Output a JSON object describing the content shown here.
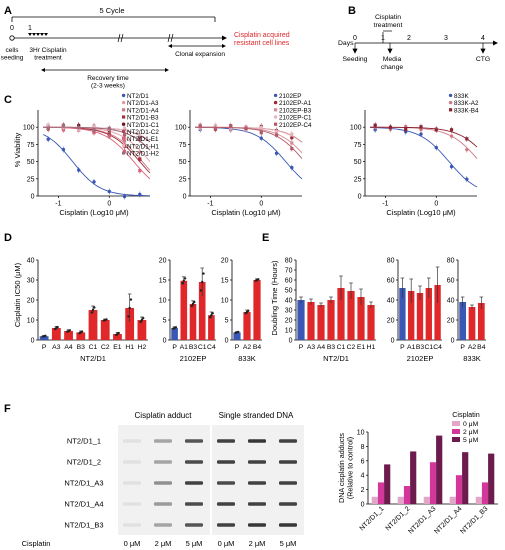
{
  "panels": {
    "A": {
      "letter": "A",
      "cycle_label": "5 Cycle",
      "day0": "0",
      "day1": "1",
      "seeding": "cells\nseeding",
      "treatment": "3Hr Cisplatin\ntreatment",
      "recovery": "Recovery time\n(2-3 weeks)",
      "clonal": "Clonal expansion",
      "resistant": "Cisplatin acquired\nresistant cell lines",
      "resistant_color": "#e0272a"
    },
    "B": {
      "letter": "B",
      "days_label": "Days",
      "ticks": [
        "0",
        "1",
        "2",
        "3",
        "4"
      ],
      "cisplatin": "Cisplatin\ntreatment",
      "media": "Media\nchange",
      "seeding": "Seeding",
      "ctg": "CTG"
    },
    "C": {
      "letter": "C",
      "ylabel": "% Viability",
      "xlabel": "Cisplatin (Log10 μM)"
    },
    "D": {
      "letter": "D",
      "ylabel": "Cisplatin IC50 (μM)"
    },
    "E": {
      "letter": "E",
      "ylabel": "Doubling Time (Hours)"
    },
    "F": {
      "letter": "F",
      "adduct_title": "Cisplatin adduct",
      "ssdna_title": "Single stranded DNA",
      "rows": [
        "NT2/D1_1",
        "NT2/D1_2",
        "NT2/D1_A3",
        "NT2/D1_A4",
        "NT2/D1_B3"
      ],
      "dose_label": "Cisplatin",
      "doses": [
        "0 μM",
        "2 μM",
        "5 μM"
      ],
      "blot_adduct": [
        [
          0.05,
          0.35,
          0.75
        ],
        [
          0.05,
          0.35,
          0.8
        ],
        [
          0.05,
          0.45,
          0.85
        ],
        [
          0.05,
          0.4,
          0.8
        ],
        [
          0.05,
          0.35,
          0.75
        ]
      ],
      "blot_ssdna": [
        [
          0.85,
          0.9,
          0.85
        ],
        [
          0.85,
          0.85,
          0.85
        ],
        [
          0.8,
          0.85,
          0.85
        ],
        [
          0.85,
          0.85,
          0.85
        ],
        [
          0.85,
          0.9,
          0.9
        ]
      ]
    }
  },
  "chart_data": [
    {
      "type": "line",
      "panel": "C-left",
      "xlabel": "Cisplatin (Log10 μM)",
      "ylabel": "% Viability",
      "xlim": [
        -1.4,
        0.8
      ],
      "ylim": [
        0,
        125
      ],
      "xticks": [
        -1,
        0
      ],
      "yticks": [
        0,
        25,
        50,
        75,
        100
      ],
      "legend_position": "top-right",
      "series": [
        {
          "name": "NT2/D1",
          "color": "#3a57b5",
          "marker": "circle",
          "ic50": -0.72,
          "hill": 1.6
        },
        {
          "name": "NT2/D1-A3",
          "color": "#e49aa6",
          "marker": "circle",
          "ic50": 0.8,
          "hill": 1.5
        },
        {
          "name": "NT2/D1-A4",
          "color": "#c97d88",
          "marker": "square",
          "ic50": 0.65,
          "hill": 1.5
        },
        {
          "name": "NT2/D1-B3",
          "color": "#a3303c",
          "marker": "square",
          "ic50": 0.6,
          "hill": 1.5
        },
        {
          "name": "NT2/D1-C1",
          "color": "#6b1520",
          "marker": "circle",
          "ic50": 1.18,
          "hill": 1.5
        },
        {
          "name": "NT2/D1-C2",
          "color": "#b4434f",
          "marker": "circle",
          "ic50": 1.0,
          "hill": 1.5
        },
        {
          "name": "NT2/D1-E1",
          "color": "#d8627a",
          "marker": "square",
          "ic50": 0.48,
          "hill": 1.5
        },
        {
          "name": "NT2/D1-H1",
          "color": "#e6b9c3",
          "marker": "circle",
          "ic50": 1.2,
          "hill": 1.5
        },
        {
          "name": "NT2/D1-H2",
          "color": "#a06a78",
          "marker": "square",
          "ic50": 1.0,
          "hill": 1.5
        }
      ]
    },
    {
      "type": "line",
      "panel": "C-middle",
      "xlim": [
        -1.4,
        0.8
      ],
      "ylim": [
        0,
        125
      ],
      "xticks": [
        -1,
        0
      ],
      "yticks": [
        0,
        25,
        50,
        75,
        100
      ],
      "legend_position": "top-right",
      "series": [
        {
          "name": "2102EP",
          "color": "#3a57b5",
          "marker": "circle",
          "ic50": 0.48,
          "hill": 1.5
        },
        {
          "name": "2102EP-A1",
          "color": "#9b2532",
          "marker": "circle",
          "ic50": 1.17,
          "hill": 1.5
        },
        {
          "name": "2102EP-B3",
          "color": "#d58b96",
          "marker": "square",
          "ic50": 0.95,
          "hill": 1.5
        },
        {
          "name": "2102EP-C1",
          "color": "#e8b4bc",
          "marker": "circle",
          "ic50": 1.16,
          "hill": 1.5
        },
        {
          "name": "2102EP-C4",
          "color": "#b25a68",
          "marker": "square",
          "ic50": 0.85,
          "hill": 1.5
        }
      ]
    },
    {
      "type": "line",
      "panel": "C-right",
      "xlim": [
        -1.4,
        0.8
      ],
      "ylim": [
        0,
        125
      ],
      "xticks": [
        -1,
        0
      ],
      "yticks": [
        0,
        25,
        50,
        75,
        100
      ],
      "legend_position": "top-right",
      "series": [
        {
          "name": "833K",
          "color": "#3a57b5",
          "marker": "circle",
          "ic50": 0.25,
          "hill": 1.5
        },
        {
          "name": "833K-A2",
          "color": "#d07a86",
          "marker": "circle",
          "ic50": 0.85,
          "hill": 1.5
        },
        {
          "name": "833K-B4",
          "color": "#8b2330",
          "marker": "square",
          "ic50": 1.06,
          "hill": 1.5
        }
      ]
    },
    {
      "type": "bar",
      "panel": "D",
      "ylabel": "Cisplatin IC50 (μM)",
      "groups": [
        {
          "name": "NT2/D1",
          "ylim": [
            0,
            40
          ],
          "yticks": [
            0,
            10,
            20,
            30,
            40
          ],
          "categories": [
            "P",
            "A3",
            "A4",
            "B3",
            "C1",
            "C2",
            "E1",
            "H1",
            "H2"
          ],
          "values": [
            1.9,
            6.0,
            4.5,
            3.8,
            15.0,
            10.0,
            3.0,
            16.0,
            10.0
          ],
          "errors": [
            0.3,
            0.8,
            0.6,
            0.7,
            2.0,
            0.5,
            0.8,
            7.0,
            1.5
          ]
        },
        {
          "name": "2102EP",
          "ylim": [
            0,
            20
          ],
          "yticks": [
            0,
            5,
            10,
            15,
            20
          ],
          "categories": [
            "P",
            "A1",
            "B3",
            "C1",
            "C4"
          ],
          "values": [
            3.0,
            14.8,
            9.0,
            14.5,
            6.2
          ],
          "errors": [
            0.3,
            1.0,
            0.8,
            3.5,
            0.8
          ]
        },
        {
          "name": "833K",
          "ylim": [
            0,
            20
          ],
          "yticks": [
            0,
            5,
            10,
            15,
            20
          ],
          "categories": [
            "P",
            "A2",
            "B4"
          ],
          "values": [
            1.9,
            7.0,
            15.0
          ],
          "errors": [
            0.2,
            0.5,
            0.3
          ]
        }
      ]
    },
    {
      "type": "bar",
      "panel": "E",
      "ylabel": "Doubling Time (Hours)",
      "groups": [
        {
          "name": "NT2/D1",
          "ylim": [
            0,
            80
          ],
          "yticks": [
            0,
            10,
            20,
            30,
            40,
            50,
            60,
            70,
            80
          ],
          "categories": [
            "P",
            "A3",
            "A4",
            "B3",
            "C1",
            "C2",
            "E1",
            "H1"
          ],
          "values": [
            40,
            38,
            35,
            40,
            52,
            49,
            43,
            35
          ],
          "errors": [
            3,
            3,
            2,
            3,
            12,
            8,
            8,
            3
          ]
        },
        {
          "name": "2102EP",
          "ylim": [
            0,
            80
          ],
          "yticks": [
            0,
            20,
            40,
            60,
            80
          ],
          "categories": [
            "P",
            "A1",
            "B3",
            "C1",
            "C4"
          ],
          "values": [
            52,
            49,
            47,
            52,
            55
          ],
          "errors": [
            10,
            12,
            7,
            10,
            18
          ]
        },
        {
          "name": "833K",
          "ylim": [
            0,
            80
          ],
          "yticks": [
            0,
            20,
            40,
            60,
            80
          ],
          "categories": [
            "P",
            "A2",
            "B4"
          ],
          "values": [
            38,
            33,
            37
          ],
          "errors": [
            5,
            2,
            6
          ]
        }
      ]
    },
    {
      "type": "bar",
      "panel": "F",
      "ylabel": "DNA cisplatin adducts\n(Relative to control)",
      "ylim": [
        0,
        10
      ],
      "yticks": [
        0,
        2,
        4,
        6,
        8,
        10
      ],
      "categories": [
        "NT2/D1_1",
        "NT2/D1_2",
        "NT2/D1_A3",
        "NT2/D1_A4",
        "NT2/D1_B3"
      ],
      "legend_title": "Cisplatin",
      "legend_position": "top-right",
      "series": [
        {
          "name": "0 μM",
          "color": "#e2a7c8",
          "values": [
            1,
            1,
            1,
            1,
            1
          ]
        },
        {
          "name": "2 μM",
          "color": "#d4379a",
          "values": [
            3.0,
            2.5,
            5.8,
            4.0,
            3.0
          ]
        },
        {
          "name": "5 μM",
          "color": "#6d1b4d",
          "values": [
            5.5,
            7.3,
            9.5,
            7.2,
            7.0
          ]
        }
      ]
    }
  ]
}
